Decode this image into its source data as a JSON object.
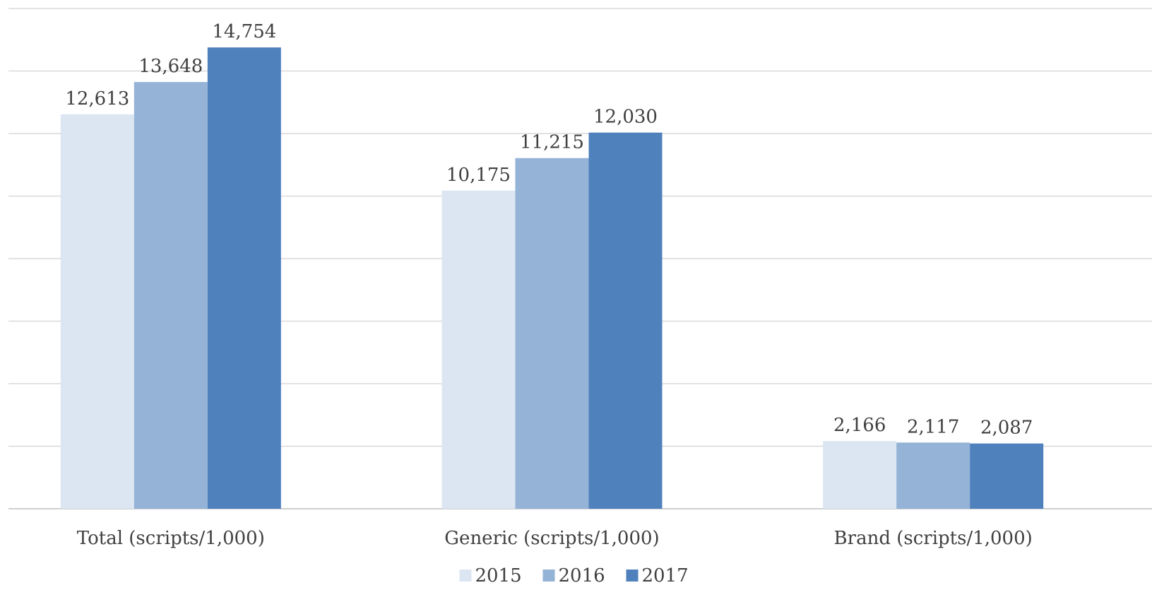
{
  "chart_data": {
    "type": "bar",
    "categories": [
      "Total (scripts/1,000)",
      "Generic (scripts/1,000)",
      "Brand (scripts/1,000)"
    ],
    "series": [
      {
        "name": "2015",
        "values": [
          12613,
          10175,
          2166
        ],
        "labels": [
          "12,613",
          "10,175",
          "2,166"
        ],
        "color": "#dce6f2"
      },
      {
        "name": "2016",
        "values": [
          13648,
          11215,
          2117
        ],
        "labels": [
          "13,648",
          "11,215",
          "2,117"
        ],
        "color": "#95b3d7"
      },
      {
        "name": "2017",
        "values": [
          14754,
          12030,
          2087
        ],
        "labels": [
          "14,754",
          "12,030",
          "2,087"
        ],
        "color": "#4f81bd"
      }
    ],
    "ylim": [
      0,
      16000
    ],
    "grid": true,
    "legend_position": "bottom-center"
  }
}
